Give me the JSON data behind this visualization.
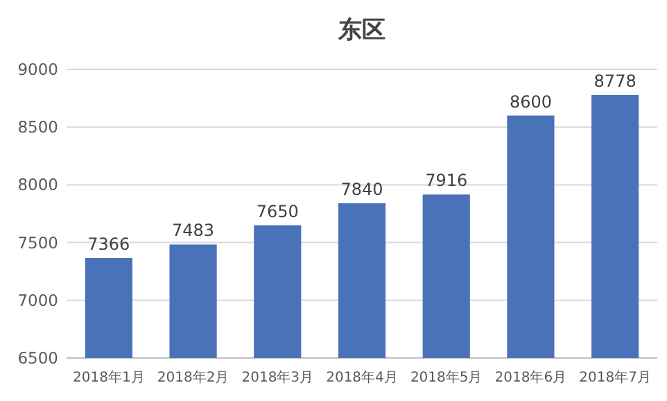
{
  "chart_data": {
    "type": "bar",
    "title": "东区",
    "categories": [
      "2018年1月",
      "2018年2月",
      "2018年3月",
      "2018年4月",
      "2018年5月",
      "2018年6月",
      "2018年7月"
    ],
    "values": [
      7366,
      7483,
      7650,
      7840,
      7916,
      8600,
      8778
    ],
    "color": "#4a72b8",
    "ylim": [
      6500,
      9000
    ],
    "yticks": [
      6500,
      7000,
      7500,
      8000,
      8500,
      9000
    ],
    "grid": "y",
    "data_labels": true
  }
}
